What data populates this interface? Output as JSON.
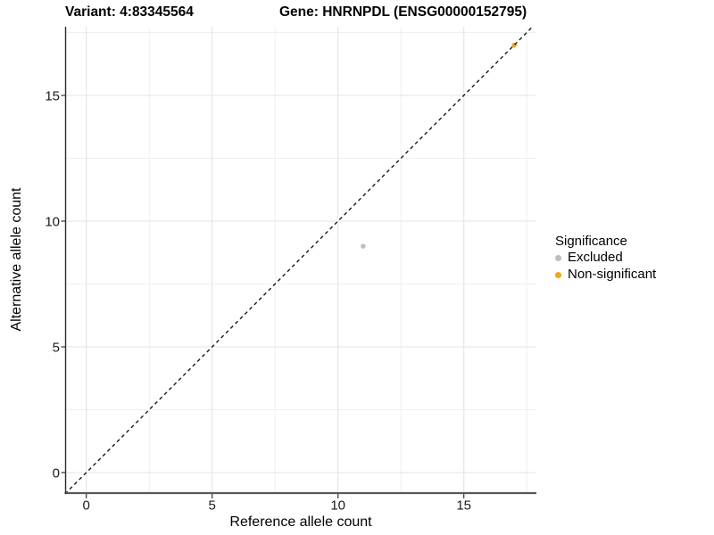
{
  "chart_data": {
    "type": "scatter",
    "titles": {
      "left": "Variant: 4:83345564",
      "right": "Gene: HNRNPDL (ENSG00000152795)"
    },
    "xlabel": "Reference allele count",
    "ylabel": "Alternative allele count",
    "xlim": [
      -0.85,
      17.9
    ],
    "ylim": [
      -0.85,
      17.73
    ],
    "ticks": [
      0,
      5,
      10,
      15
    ],
    "minor_gridlines": [
      2.5,
      7.5,
      12.5,
      17.5
    ],
    "grid": "major+minor",
    "identity_line": {
      "style": "dashed",
      "slope": 1,
      "intercept": 0,
      "color": "#1a1a1a"
    },
    "series": [
      {
        "name": "Excluded",
        "color": "#bebebe",
        "points": [
          {
            "x": 11,
            "y": 9
          }
        ]
      },
      {
        "name": "Non-significant",
        "color": "#ffa500",
        "points": [
          {
            "x": 17,
            "y": 17
          }
        ]
      }
    ],
    "legend": {
      "title": "Significance",
      "position": "right",
      "items": [
        {
          "label": "Excluded",
          "color": "#bebebe"
        },
        {
          "label": "Non-significant",
          "color": "#ffa500"
        }
      ]
    },
    "colors": {
      "grid_major": "#e4e4e4",
      "grid_minor": "#efefef",
      "axis_line_x": "#58585a",
      "axis_line_y": "#2a2a2a",
      "tick": "#333333",
      "tick_label": "#1a1a1a"
    }
  }
}
